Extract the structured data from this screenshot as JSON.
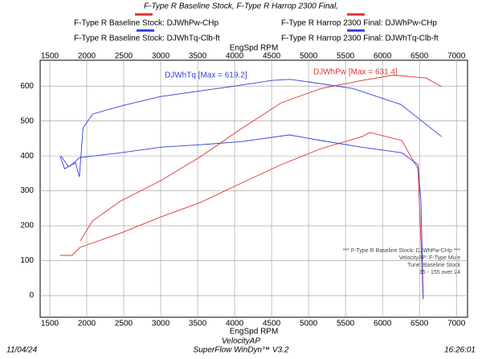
{
  "chart_data": {
    "type": "line",
    "title": "F-Type R Baseline Stock, F-Type R Harrop 2300 Final,",
    "xlabel": "EngSpd RPM",
    "xlim": [
      1370,
      7150
    ],
    "xticks": [
      1500,
      2000,
      2500,
      3000,
      3500,
      4000,
      4500,
      5000,
      5500,
      6000,
      6500,
      7000
    ],
    "ylim": [
      -62,
      674
    ],
    "yticks": [
      0,
      100,
      200,
      300,
      400,
      500,
      600
    ],
    "grid": true,
    "series": [
      {
        "name": "F-Type R Baseline Stock: DJWhPw-CHp",
        "color": "#e03030",
        "x": [
          1640,
          1800,
          1910,
          2460,
          3000,
          3540,
          4090,
          4630,
          5170,
          5720,
          5830,
          6260,
          6480,
          6520,
          6550
        ],
        "values": [
          115,
          115,
          138,
          179,
          225,
          267,
          322,
          375,
          421,
          455,
          467,
          444,
          363,
          156,
          -10
        ]
      },
      {
        "name": "F-Type R Baseline Stock: DJWhTq-Clb-ft",
        "color": "#2f3fd8",
        "x": [
          1640,
          1700,
          1800,
          1900,
          2460,
          3000,
          3540,
          4090,
          4740,
          5170,
          5720,
          6260,
          6480,
          6520,
          6550
        ],
        "values": [
          398,
          363,
          375,
          395,
          409,
          425,
          432,
          441,
          460,
          444,
          425,
          409,
          375,
          271,
          -10
        ]
      },
      {
        "name": "F-Type R Harrop 2300 Final: DJWhPw-CHp",
        "color": "#e03030",
        "x": [
          1910,
          2080,
          2460,
          3000,
          3540,
          4090,
          4630,
          5170,
          5720,
          6150,
          6590,
          6800
        ],
        "values": [
          156,
          214,
          271,
          329,
          398,
          478,
          552,
          593,
          616,
          631.4,
          623,
          598
        ]
      },
      {
        "name": "F-Type R Harrop 2300 Final: DJWhTq-Clb-ft",
        "color": "#2f3fd8",
        "x": [
          1650,
          1750,
          1850,
          1900,
          1950,
          2080,
          2500,
          3000,
          3500,
          4000,
          4500,
          4750,
          5000,
          5600,
          6250,
          6800
        ],
        "values": [
          400,
          370,
          380,
          340,
          480,
          520,
          545,
          570,
          585,
          600,
          616,
          619.2,
          612,
          593,
          547,
          455
        ]
      }
    ],
    "annotations": [
      "DJWhTq [Max = 619.2]",
      "DJWhPw [Max = 631.4]"
    ],
    "notes": [
      "*** F-Type R Baseline Stock: DJWhPw-CHp ***",
      "VelocityAP: F-Type Mule",
      "Tune: Baseline Stock",
      "35 - 155 over 24"
    ],
    "footer": {
      "brand": "VelocityAP",
      "date": "11/04/24",
      "software": "SuperFlow WinDyn™ V3.2",
      "time": "16:26:01"
    }
  }
}
